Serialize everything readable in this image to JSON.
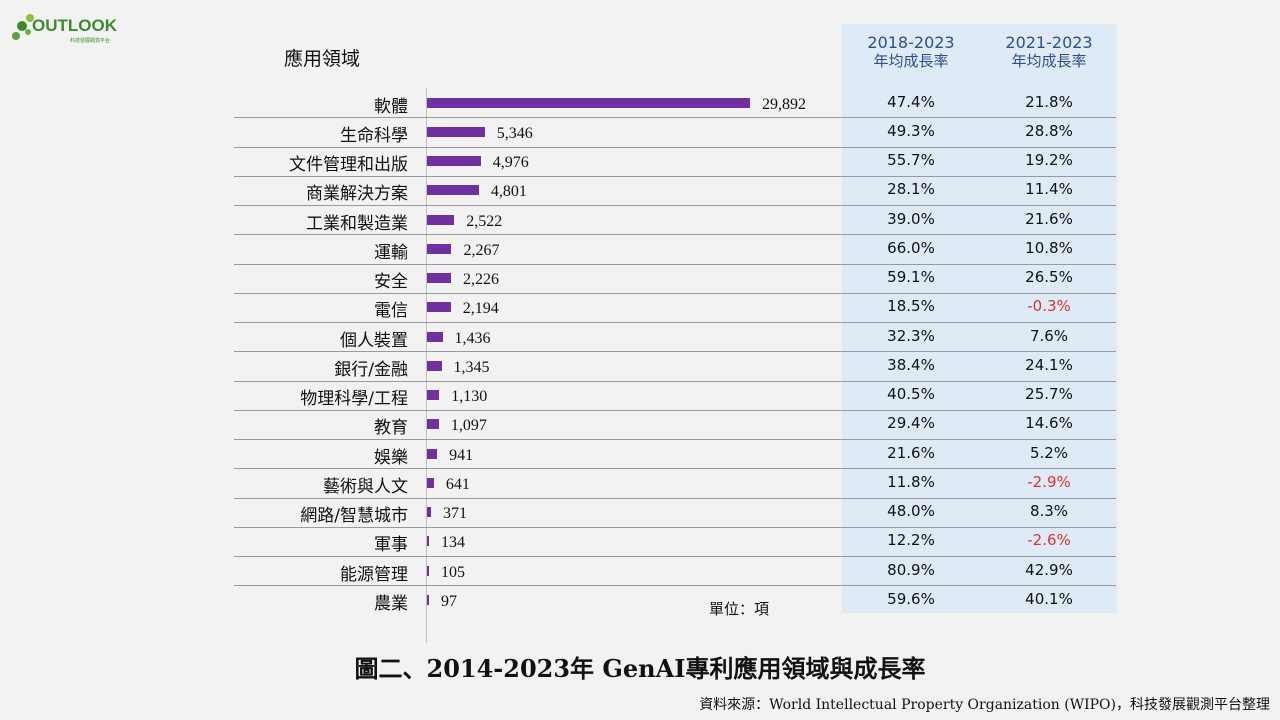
{
  "logo": {
    "text": "OUTLOOK",
    "subtext": "科技發展觀測平台"
  },
  "header": {
    "category_label": "應用領域",
    "rate1_years": "2018-2023",
    "rate1_label": "年均成長率",
    "rate2_years": "2021-2023",
    "rate2_label": "年均成長率"
  },
  "unit": "單位：項",
  "title": "圖二、2014-2023年 GenAI專利應用領域與成長率",
  "source": "資料來源：World Intellectual Property Organization (WIPO)，科技發展觀測平台整理",
  "colors": {
    "bar": "#7030a0",
    "negative": "#e03030",
    "rate_header": "#2e4f8f",
    "rate_panel": "#deeaf6"
  },
  "chart_data": {
    "type": "bar",
    "orientation": "horizontal",
    "categories": [
      "軟體",
      "生命科學",
      "文件管理和出版",
      "商業解決方案",
      "工業和製造業",
      "運輸",
      "安全",
      "電信",
      "個人裝置",
      "銀行/金融",
      "物理科學/工程",
      "教育",
      "娛樂",
      "藝術與人文",
      "網路/智慧城市",
      "軍事",
      "能源管理",
      "農業"
    ],
    "values": [
      29892,
      5346,
      4976,
      4801,
      2522,
      2267,
      2226,
      2194,
      1436,
      1345,
      1130,
      1097,
      941,
      641,
      371,
      134,
      105,
      97
    ],
    "value_labels": [
      "29,892",
      "5,346",
      "4,976",
      "4,801",
      "2,522",
      "2,267",
      "2,226",
      "2,194",
      "1,436",
      "1,345",
      "1,130",
      "1,097",
      "941",
      "641",
      "371",
      "134",
      "105",
      "97"
    ],
    "rate_2018_2023": [
      "47.4%",
      "49.3%",
      "55.7%",
      "28.1%",
      "39.0%",
      "66.0%",
      "59.1%",
      "18.5%",
      "32.3%",
      "38.4%",
      "40.5%",
      "29.4%",
      "21.6%",
      "11.8%",
      "48.0%",
      "12.2%",
      "80.9%",
      "59.6%"
    ],
    "rate_2021_2023": [
      "21.8%",
      "28.8%",
      "19.2%",
      "11.4%",
      "21.6%",
      "10.8%",
      "26.5%",
      "-0.3%",
      "7.6%",
      "24.1%",
      "25.7%",
      "14.6%",
      "5.2%",
      "-2.9%",
      "8.3%",
      "-2.6%",
      "42.9%",
      "40.1%"
    ],
    "xlim": [
      0,
      29892
    ]
  }
}
